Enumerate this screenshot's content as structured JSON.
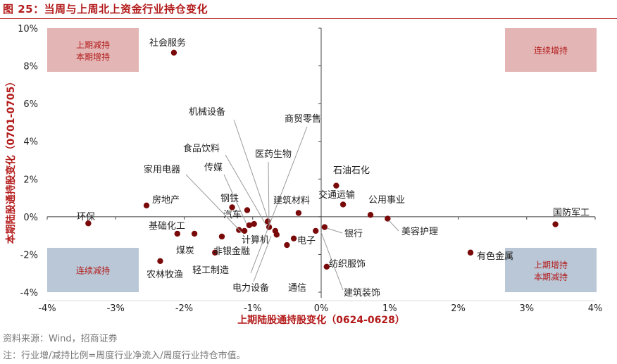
{
  "title": "图 25：当周与上周北上资金行业持仓变化",
  "source": "资料来源：Wind，招商证券",
  "note": "注：行业增/减持比例=周度行业净流入/周度行业持仓市值。",
  "chart_data": {
    "type": "scatter",
    "xlabel": "上期陆股通持股变化（0624-0628）",
    "ylabel": "本期陆股通持股变化（0701-0705）",
    "xlim": [
      -4,
      4
    ],
    "ylim": [
      -4,
      10
    ],
    "xticks": [
      -4,
      -3,
      -2,
      -1,
      0,
      1,
      2,
      3,
      4
    ],
    "xtick_labels": [
      "-4%",
      "-3%",
      "-2%",
      "-1%",
      "0%",
      "1%",
      "2%",
      "3%",
      "4%"
    ],
    "yticks": [
      -4,
      -2,
      0,
      2,
      4,
      6,
      8,
      10
    ],
    "ytick_labels": [
      "-4%",
      "-2%",
      "0%",
      "2%",
      "4%",
      "6%",
      "8%",
      "10%"
    ],
    "point_color": "#7a0a0a",
    "quadrant_boxes": [
      {
        "lines": [
          "上期减持",
          "本期增持"
        ],
        "color": "#e3b5b5",
        "text_color": "#b31b1b"
      },
      {
        "lines": [
          "连续增持"
        ],
        "color": "#e3b5b5",
        "text_color": "#b31b1b"
      },
      {
        "lines": [
          "连续减持"
        ],
        "color": "#b9c7d6",
        "text_color": "#b31b1b"
      },
      {
        "lines": [
          "上期增持",
          "本期减持"
        ],
        "color": "#b9c7d6",
        "text_color": "#b31b1b"
      }
    ],
    "points": [
      {
        "name": "社会服务",
        "x": -2.15,
        "y": 8.7
      },
      {
        "name": "环保",
        "x": -3.4,
        "y": -0.35
      },
      {
        "name": "房地产",
        "x": -2.55,
        "y": 0.6
      },
      {
        "name": "基础化工",
        "x": -2.1,
        "y": -0.9
      },
      {
        "name": "煤炭",
        "x": -1.85,
        "y": -0.9
      },
      {
        "name": "农林牧渔",
        "x": -2.35,
        "y": -2.35
      },
      {
        "name": "轻工制造",
        "x": -1.55,
        "y": -1.9
      },
      {
        "name": "非银金融",
        "x": -1.45,
        "y": -1.05
      },
      {
        "name": "钢铁",
        "x": -1.3,
        "y": 0.5
      },
      {
        "name": "汽车",
        "x": -1.2,
        "y": -0.7
      },
      {
        "name": "家用电器",
        "x": -1.12,
        "y": -0.75
      },
      {
        "name": "传媒",
        "x": -1.08,
        "y": 0.35
      },
      {
        "name": "食品饮料",
        "x": -1.05,
        "y": -0.45
      },
      {
        "name": "机械设备",
        "x": -0.98,
        "y": -0.38
      },
      {
        "name": "医药生物",
        "x": -0.78,
        "y": -0.25
      },
      {
        "name": "计算机",
        "x": -0.76,
        "y": -0.55
      },
      {
        "name": "商贸零售",
        "x": -0.67,
        "y": -0.75
      },
      {
        "name": "电力设备",
        "x": -0.65,
        "y": -0.95
      },
      {
        "name": "通信",
        "x": -0.5,
        "y": -1.5
      },
      {
        "name": "电子",
        "x": -0.4,
        "y": -1.15
      },
      {
        "name": "建筑材料",
        "x": -0.33,
        "y": 0.2
      },
      {
        "name": "建筑装饰",
        "x": -0.08,
        "y": -0.75
      },
      {
        "name": "银行",
        "x": 0.05,
        "y": -0.55
      },
      {
        "name": "纺织服饰",
        "x": 0.08,
        "y": -2.65
      },
      {
        "name": "石油石化",
        "x": 0.22,
        "y": 1.65
      },
      {
        "name": "交通运输",
        "x": 0.32,
        "y": 0.65
      },
      {
        "name": "公用事业",
        "x": 0.72,
        "y": 0.1
      },
      {
        "name": "美容护理",
        "x": 0.97,
        "y": -0.1
      },
      {
        "name": "有色金属",
        "x": 2.18,
        "y": -1.9
      },
      {
        "name": "国防军工",
        "x": 3.42,
        "y": -0.4
      }
    ]
  }
}
